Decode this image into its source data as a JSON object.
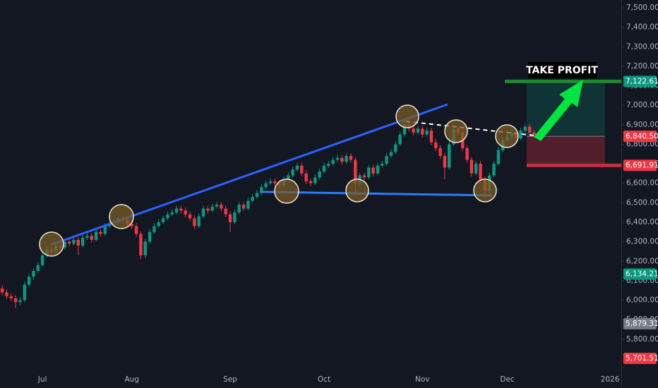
{
  "chart_data": {
    "type": "candlestick",
    "categories": [
      null,
      null,
      null,
      null,
      null,
      null,
      null,
      null,
      null,
      "Jul",
      null,
      null,
      null,
      null,
      null,
      null,
      null,
      null,
      null,
      null,
      null,
      null,
      null,
      null,
      null,
      null,
      null,
      null,
      null,
      "Aug",
      null,
      null,
      null,
      null,
      null,
      null,
      null,
      null,
      null,
      null,
      null,
      null,
      null,
      null,
      null,
      null,
      null,
      null,
      null,
      null,
      null,
      "Sep",
      null,
      null,
      null,
      null,
      null,
      null,
      null,
      null,
      null,
      null,
      null,
      null,
      null,
      null,
      null,
      null,
      null,
      null,
      null,
      null,
      "Oct",
      null,
      null,
      null,
      null,
      null,
      null,
      null,
      null,
      null,
      null,
      null,
      null,
      null,
      null,
      null,
      null,
      null,
      null,
      null,
      null,
      null,
      "Nov",
      null,
      null,
      null,
      null,
      null,
      null,
      null,
      null,
      null,
      null,
      null,
      null,
      null,
      null,
      null,
      null,
      null,
      null,
      "Dec",
      null,
      null,
      null,
      null,
      null,
      null,
      null,
      null,
      null,
      null,
      null,
      null,
      null,
      null,
      null,
      null,
      null,
      null,
      null,
      null,
      null,
      null,
      "2026",
      null,
      null
    ],
    "open": [
      6060,
      6040,
      6020,
      6010,
      5990,
      6000,
      6080,
      6120,
      6150,
      6180,
      6230,
      6260,
      6250,
      6280,
      6270,
      6300,
      6290,
      6310,
      6280,
      6320,
      6330,
      6310,
      6350,
      6340,
      6380,
      6390,
      6400,
      6420,
      6410,
      6390,
      6380,
      6340,
      6230,
      6300,
      6350,
      6380,
      6400,
      6420,
      6440,
      6450,
      6470,
      6460,
      6440,
      6420,
      6380,
      6430,
      6470,
      6460,
      6480,
      6490,
      6470,
      6440,
      6400,
      6450,
      6490,
      6470,
      6510,
      6530,
      6550,
      6580,
      6600,
      6610,
      6600,
      6590,
      6620,
      6640,
      6670,
      6690,
      6650,
      6610,
      6600,
      6630,
      6660,
      6690,
      6700,
      6720,
      6730,
      6710,
      6740,
      6720,
      6600,
      6640,
      6630,
      6680,
      6650,
      6690,
      6700,
      6740,
      6760,
      6800,
      6850,
      6900,
      6880,
      6860,
      6880,
      6850,
      6870,
      6810,
      6780,
      6740,
      6680,
      6800,
      6880,
      6860,
      6780,
      6720,
      6650,
      6700,
      6620,
      6560,
      6640,
      6700,
      6770,
      6820,
      6840,
      6860,
      6830,
      6870,
      6890,
      6860,
      6850,
      null,
      null,
      null,
      null,
      null,
      null,
      null,
      null,
      null,
      null,
      null,
      null,
      null,
      null,
      null,
      null,
      null,
      null
    ],
    "high": [
      6075,
      6055,
      6035,
      6025,
      6015,
      6095,
      6135,
      6165,
      6195,
      6245,
      6275,
      6275,
      6295,
      6295,
      6315,
      6315,
      6325,
      6325,
      6335,
      6345,
      6345,
      6365,
      6365,
      6395,
      6405,
      6415,
      6435,
      6435,
      6425,
      6405,
      6395,
      6355,
      6315,
      6365,
      6395,
      6415,
      6435,
      6455,
      6465,
      6485,
      6485,
      6475,
      6455,
      6435,
      6445,
      6485,
      6485,
      6495,
      6505,
      6505,
      6485,
      6455,
      6465,
      6505,
      6505,
      6525,
      6545,
      6565,
      6595,
      6615,
      6625,
      6625,
      6615,
      6635,
      6655,
      6685,
      6705,
      6705,
      6665,
      6625,
      6645,
      6675,
      6705,
      6715,
      6735,
      6745,
      6745,
      6755,
      6755,
      6735,
      6655,
      6655,
      6695,
      6695,
      6705,
      6715,
      6755,
      6775,
      6815,
      6865,
      6930,
      6915,
      6895,
      6895,
      6895,
      6885,
      6885,
      6825,
      6795,
      6755,
      6815,
      6895,
      6895,
      6875,
      6795,
      6735,
      6715,
      6715,
      6635,
      6655,
      6715,
      6785,
      6835,
      6855,
      6875,
      6875,
      6885,
      6905,
      6905,
      6875,
      6865,
      null,
      null,
      null,
      null,
      null,
      null,
      null,
      null,
      null,
      null,
      null,
      null,
      null,
      null,
      null,
      null,
      null,
      null
    ],
    "low": [
      6025,
      6005,
      5995,
      5960,
      5975,
      5990,
      6070,
      6105,
      6140,
      6170,
      6220,
      6235,
      6240,
      6255,
      6260,
      6275,
      6280,
      6230,
      6270,
      6310,
      6295,
      6300,
      6325,
      6330,
      6370,
      6380,
      6390,
      6395,
      6375,
      6365,
      6325,
      6210,
      6215,
      6290,
      6340,
      6370,
      6390,
      6410,
      6430,
      6440,
      6445,
      6425,
      6405,
      6365,
      6370,
      6420,
      6445,
      6450,
      6470,
      6455,
      6425,
      6350,
      6390,
      6440,
      6455,
      6460,
      6500,
      6520,
      6540,
      6570,
      6590,
      6585,
      6575,
      6580,
      6610,
      6630,
      6660,
      6635,
      6595,
      6585,
      6590,
      6620,
      6650,
      6680,
      6690,
      6710,
      6695,
      6700,
      6705,
      6550,
      6585,
      6615,
      6620,
      6635,
      6640,
      6680,
      6690,
      6730,
      6750,
      6790,
      6840,
      6865,
      6845,
      6850,
      6835,
      6840,
      6795,
      6765,
      6725,
      6620,
      6670,
      6790,
      6845,
      6765,
      6705,
      6635,
      6640,
      6605,
      6530,
      6545,
      6630,
      6690,
      6760,
      6810,
      6825,
      6815,
      6820,
      6860,
      6845,
      6835,
      6825,
      null,
      null,
      null,
      null,
      null,
      null,
      null,
      null,
      null,
      null,
      null,
      null,
      null,
      null,
      null,
      null,
      null,
      null
    ],
    "close": [
      6040,
      6020,
      6010,
      5990,
      6000,
      6080,
      6120,
      6150,
      6180,
      6230,
      6260,
      6250,
      6280,
      6270,
      6300,
      6290,
      6310,
      6280,
      6320,
      6330,
      6310,
      6350,
      6340,
      6380,
      6390,
      6400,
      6420,
      6410,
      6390,
      6380,
      6340,
      6230,
      6300,
      6350,
      6380,
      6400,
      6420,
      6440,
      6450,
      6470,
      6460,
      6440,
      6420,
      6380,
      6430,
      6470,
      6460,
      6480,
      6490,
      6470,
      6440,
      6400,
      6450,
      6490,
      6470,
      6510,
      6530,
      6550,
      6580,
      6600,
      6610,
      6600,
      6590,
      6620,
      6640,
      6670,
      6690,
      6650,
      6610,
      6600,
      6630,
      6660,
      6690,
      6700,
      6720,
      6730,
      6710,
      6740,
      6720,
      6600,
      6640,
      6630,
      6680,
      6650,
      6690,
      6700,
      6740,
      6760,
      6800,
      6850,
      6900,
      6880,
      6860,
      6880,
      6850,
      6870,
      6810,
      6780,
      6740,
      6680,
      6800,
      6880,
      6860,
      6780,
      6720,
      6650,
      6700,
      6620,
      6560,
      6640,
      6700,
      6770,
      6820,
      6840,
      6860,
      6830,
      6870,
      6890,
      6860,
      6850,
      6840.5,
      null,
      null,
      null,
      null,
      null,
      null,
      null,
      null,
      null,
      null,
      null,
      null,
      null,
      null,
      null,
      null,
      null,
      null
    ],
    "up_color": "#089981",
    "down_color": "#f23645",
    "ylim": [
      5640,
      7540
    ],
    "yticks": [
      {
        "value": 5800,
        "label": "5,800.00"
      },
      {
        "value": 5900,
        "label": "5,900.00"
      },
      {
        "value": 6000,
        "label": "6,000.00"
      },
      {
        "value": 6100,
        "label": "6,100.00"
      },
      {
        "value": 6200,
        "label": "6,200.00"
      },
      {
        "value": 6300,
        "label": "6,300.00"
      },
      {
        "value": 6400,
        "label": "6,400.00"
      },
      {
        "value": 6500,
        "label": "6,500.00"
      },
      {
        "value": 6600,
        "label": "6,600.00"
      },
      {
        "value": 6700,
        "label": "6,700.00"
      },
      {
        "value": 6800,
        "label": "6,800.00"
      },
      {
        "value": 6900,
        "label": "6,900.00"
      },
      {
        "value": 7000,
        "label": "7,000.00"
      },
      {
        "value": 7100,
        "label": "7,100.00"
      },
      {
        "value": 7200,
        "label": "7,200.00"
      },
      {
        "value": 7300,
        "label": "7,300.00"
      },
      {
        "value": 7400,
        "label": "7,400.00"
      },
      {
        "value": 7500,
        "label": "7,500.00"
      }
    ],
    "price_labels": [
      {
        "value": 7122.61,
        "label": "7,122.61",
        "color": "#089981"
      },
      {
        "value": 6840.5,
        "label": "6,840.50",
        "color": "#f23645"
      },
      {
        "value": 6691.91,
        "label": "6,691.91",
        "color": "#f23645"
      },
      {
        "value": 6134.21,
        "label": "6,134.21",
        "color": "#089981"
      },
      {
        "value": 5879.31,
        "label": "5,879.31",
        "color": "#787b86"
      },
      {
        "value": 5701.51,
        "label": "5,701.51",
        "color": "#f23645"
      }
    ],
    "annotation": "TAKE PROFIT"
  }
}
